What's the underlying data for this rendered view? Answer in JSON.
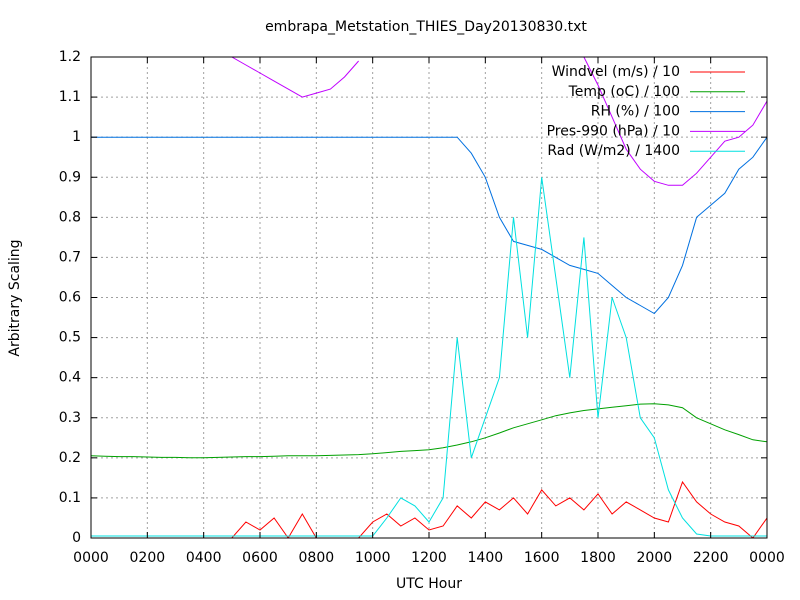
{
  "chart_data": {
    "type": "line",
    "title": "embrapa_Metstation_THIES_Day20130830.txt",
    "x_label": "UTC Hour",
    "y_label": "Arbitrary Scaling",
    "x": [
      0,
      0.5,
      1,
      1.5,
      2,
      2.5,
      3,
      3.5,
      4,
      4.5,
      5,
      5.5,
      6,
      6.5,
      7,
      7.5,
      8,
      8.5,
      9,
      9.5,
      10,
      10.5,
      11,
      11.5,
      12,
      12.5,
      13,
      13.5,
      14,
      14.5,
      15,
      15.5,
      16,
      16.5,
      17,
      17.5,
      18,
      18.5,
      19,
      19.5,
      20,
      20.5,
      21,
      21.5,
      22,
      22.5,
      23,
      23.5,
      24
    ],
    "series": [
      {
        "name": "Windvel (m/s) / 10",
        "color": "#ff0000",
        "values": [
          0,
          0,
          0,
          0,
          0,
          0,
          0,
          0,
          0,
          0,
          0,
          0.04,
          0.02,
          0.05,
          0,
          0.06,
          0,
          0,
          0,
          0,
          0.04,
          0.06,
          0.03,
          0.05,
          0.02,
          0.03,
          0.08,
          0.05,
          0.09,
          0.07,
          0.1,
          0.06,
          0.12,
          0.08,
          0.1,
          0.07,
          0.11,
          0.06,
          0.09,
          0.07,
          0.05,
          0.04,
          0.14,
          0.09,
          0.06,
          0.04,
          0.03,
          0,
          0.05
        ]
      },
      {
        "name": "Temp (oC) / 100",
        "color": "#00a000",
        "values": [
          0.205,
          0.204,
          0.203,
          0.203,
          0.202,
          0.201,
          0.201,
          0.2,
          0.2,
          0.201,
          0.202,
          0.203,
          0.203,
          0.204,
          0.205,
          0.205,
          0.205,
          0.206,
          0.207,
          0.208,
          0.21,
          0.213,
          0.216,
          0.218,
          0.22,
          0.225,
          0.232,
          0.24,
          0.25,
          0.262,
          0.275,
          0.285,
          0.295,
          0.305,
          0.312,
          0.318,
          0.322,
          0.326,
          0.33,
          0.334,
          0.335,
          0.332,
          0.325,
          0.3,
          0.285,
          0.27,
          0.258,
          0.245,
          0.24
        ]
      },
      {
        "name": "RH (%) / 100",
        "color": "#0070e0",
        "values": [
          1,
          1,
          1,
          1,
          1,
          1,
          1,
          1,
          1,
          1,
          1,
          1,
          1,
          1,
          1,
          1,
          1,
          1,
          1,
          1,
          1,
          1,
          1,
          1,
          1,
          1,
          1,
          0.96,
          0.9,
          0.8,
          0.74,
          0.73,
          0.72,
          0.7,
          0.68,
          0.67,
          0.66,
          0.63,
          0.6,
          0.58,
          0.56,
          0.6,
          0.68,
          0.8,
          0.83,
          0.86,
          0.92,
          0.95,
          1.0
        ]
      },
      {
        "name": "Pres-990 (hPa) / 10",
        "color": "#c000ff",
        "values": [
          null,
          null,
          null,
          null,
          null,
          null,
          null,
          null,
          null,
          null,
          1.2,
          1.18,
          1.16,
          1.14,
          1.12,
          1.1,
          1.11,
          1.12,
          1.15,
          1.19,
          null,
          null,
          null,
          null,
          null,
          null,
          null,
          null,
          null,
          null,
          null,
          null,
          null,
          null,
          null,
          1.2,
          1.13,
          1.05,
          0.97,
          0.92,
          0.89,
          0.88,
          0.88,
          0.91,
          0.95,
          0.99,
          1.0,
          1.03,
          1.09
        ]
      },
      {
        "name": "Rad (W/m2) / 1400",
        "color": "#00e0e0",
        "values": [
          0.005,
          0.005,
          0.005,
          0.005,
          0.005,
          0.005,
          0.005,
          0.005,
          0.005,
          0.005,
          0.005,
          0.005,
          0.005,
          0.005,
          0.005,
          0.005,
          0.005,
          0.005,
          0.005,
          0.005,
          0.005,
          0.05,
          0.1,
          0.08,
          0.04,
          0.1,
          0.5,
          0.2,
          0.3,
          0.4,
          0.8,
          0.5,
          0.9,
          0.65,
          0.4,
          0.75,
          0.3,
          0.6,
          0.5,
          0.3,
          0.25,
          0.12,
          0.05,
          0.01,
          0.005,
          0.005,
          0.005,
          0.005,
          0.005
        ]
      }
    ],
    "xlim": [
      0,
      24
    ],
    "xticks": [
      {
        "value": 0,
        "label": "0000"
      },
      {
        "value": 2,
        "label": "0200"
      },
      {
        "value": 4,
        "label": "0400"
      },
      {
        "value": 6,
        "label": "0600"
      },
      {
        "value": 8,
        "label": "0800"
      },
      {
        "value": 10,
        "label": "1000"
      },
      {
        "value": 12,
        "label": "1200"
      },
      {
        "value": 14,
        "label": "1400"
      },
      {
        "value": 16,
        "label": "1600"
      },
      {
        "value": 18,
        "label": "1800"
      },
      {
        "value": 20,
        "label": "2000"
      },
      {
        "value": 22,
        "label": "2200"
      },
      {
        "value": 24,
        "label": "0000"
      }
    ],
    "ylim": [
      0,
      1.2
    ],
    "yticks": [
      0,
      0.1,
      0.2,
      0.3,
      0.4,
      0.5,
      0.6,
      0.7,
      0.8,
      0.9,
      1,
      1.1,
      1.2
    ],
    "grid": true,
    "legend": "top-right"
  }
}
